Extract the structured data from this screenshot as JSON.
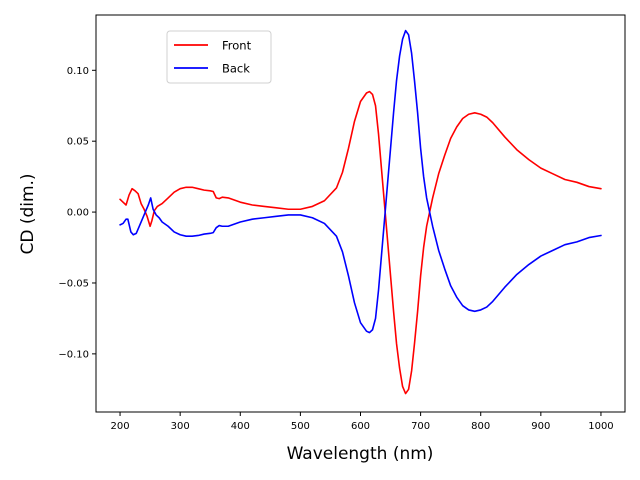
{
  "chart_data": {
    "type": "line",
    "title": "",
    "xlabel": "Wavelength (nm)",
    "ylabel": "CD (dim.)",
    "xlim": [
      160,
      1040
    ],
    "ylim": [
      -0.141,
      0.139
    ],
    "xticks": [
      200,
      300,
      400,
      500,
      600,
      700,
      800,
      900,
      1000
    ],
    "yticks": [
      -0.1,
      -0.05,
      0.0,
      0.05,
      0.1
    ],
    "ytick_labels": [
      "−0.10",
      "−0.05",
      "0.00",
      "0.05",
      "0.10"
    ],
    "legend_position": "upper-left",
    "grid": false,
    "series": [
      {
        "name": "Front",
        "color": "#ff0000",
        "points": [
          [
            200,
            0.009
          ],
          [
            205,
            0.007
          ],
          [
            210,
            0.005
          ],
          [
            215,
            0.012
          ],
          [
            220,
            0.0165
          ],
          [
            225,
            0.015
          ],
          [
            230,
            0.013
          ],
          [
            235,
            0.006
          ],
          [
            240,
            0.002
          ],
          [
            245,
            -0.003
          ],
          [
            250,
            -0.01
          ],
          [
            253,
            -0.006
          ],
          [
            257,
            0.001
          ],
          [
            262,
            0.004
          ],
          [
            270,
            0.006
          ],
          [
            280,
            0.01
          ],
          [
            290,
            0.014
          ],
          [
            300,
            0.0165
          ],
          [
            310,
            0.0175
          ],
          [
            320,
            0.0175
          ],
          [
            330,
            0.0165
          ],
          [
            340,
            0.0155
          ],
          [
            350,
            0.015
          ],
          [
            355,
            0.0145
          ],
          [
            360,
            0.01
          ],
          [
            365,
            0.0095
          ],
          [
            370,
            0.0105
          ],
          [
            380,
            0.01
          ],
          [
            400,
            0.007
          ],
          [
            420,
            0.005
          ],
          [
            440,
            0.004
          ],
          [
            460,
            0.003
          ],
          [
            480,
            0.002
          ],
          [
            500,
            0.002
          ],
          [
            520,
            0.004
          ],
          [
            540,
            0.008
          ],
          [
            560,
            0.017
          ],
          [
            570,
            0.028
          ],
          [
            580,
            0.045
          ],
          [
            590,
            0.064
          ],
          [
            600,
            0.078
          ],
          [
            610,
            0.084
          ],
          [
            615,
            0.085
          ],
          [
            620,
            0.083
          ],
          [
            625,
            0.075
          ],
          [
            630,
            0.055
          ],
          [
            635,
            0.03
          ],
          [
            640,
            0.005
          ],
          [
            645,
            -0.02
          ],
          [
            650,
            -0.045
          ],
          [
            655,
            -0.07
          ],
          [
            660,
            -0.093
          ],
          [
            665,
            -0.11
          ],
          [
            670,
            -0.123
          ],
          [
            675,
            -0.128
          ],
          [
            680,
            -0.125
          ],
          [
            685,
            -0.112
          ],
          [
            690,
            -0.092
          ],
          [
            695,
            -0.07
          ],
          [
            700,
            -0.045
          ],
          [
            705,
            -0.025
          ],
          [
            710,
            -0.01
          ],
          [
            720,
            0.01
          ],
          [
            730,
            0.027
          ],
          [
            740,
            0.04
          ],
          [
            750,
            0.052
          ],
          [
            760,
            0.06
          ],
          [
            770,
            0.066
          ],
          [
            780,
            0.069
          ],
          [
            790,
            0.07
          ],
          [
            800,
            0.069
          ],
          [
            810,
            0.067
          ],
          [
            820,
            0.063
          ],
          [
            840,
            0.053
          ],
          [
            860,
            0.044
          ],
          [
            880,
            0.037
          ],
          [
            900,
            0.031
          ],
          [
            920,
            0.027
          ],
          [
            940,
            0.023
          ],
          [
            960,
            0.021
          ],
          [
            980,
            0.018
          ],
          [
            1000,
            0.0165
          ]
        ]
      },
      {
        "name": "Back",
        "color": "#0000ff",
        "points": [
          [
            200,
            -0.009
          ],
          [
            205,
            -0.008
          ],
          [
            210,
            -0.005
          ],
          [
            213,
            -0.005
          ],
          [
            218,
            -0.014
          ],
          [
            222,
            -0.016
          ],
          [
            227,
            -0.015
          ],
          [
            232,
            -0.01
          ],
          [
            237,
            -0.005
          ],
          [
            242,
            0.0
          ],
          [
            247,
            0.005
          ],
          [
            251,
            0.01
          ],
          [
            255,
            0.002
          ],
          [
            260,
            -0.002
          ],
          [
            265,
            -0.004
          ],
          [
            270,
            -0.007
          ],
          [
            280,
            -0.01
          ],
          [
            290,
            -0.014
          ],
          [
            300,
            -0.016
          ],
          [
            310,
            -0.017
          ],
          [
            320,
            -0.017
          ],
          [
            330,
            -0.0165
          ],
          [
            340,
            -0.0155
          ],
          [
            350,
            -0.015
          ],
          [
            355,
            -0.0145
          ],
          [
            360,
            -0.011
          ],
          [
            365,
            -0.0095
          ],
          [
            370,
            -0.01
          ],
          [
            380,
            -0.01
          ],
          [
            400,
            -0.007
          ],
          [
            420,
            -0.005
          ],
          [
            440,
            -0.004
          ],
          [
            460,
            -0.003
          ],
          [
            480,
            -0.002
          ],
          [
            500,
            -0.002
          ],
          [
            520,
            -0.004
          ],
          [
            540,
            -0.008
          ],
          [
            560,
            -0.017
          ],
          [
            570,
            -0.028
          ],
          [
            580,
            -0.045
          ],
          [
            590,
            -0.064
          ],
          [
            600,
            -0.078
          ],
          [
            610,
            -0.084
          ],
          [
            615,
            -0.085
          ],
          [
            620,
            -0.083
          ],
          [
            625,
            -0.075
          ],
          [
            630,
            -0.055
          ],
          [
            635,
            -0.03
          ],
          [
            640,
            -0.005
          ],
          [
            645,
            0.02
          ],
          [
            650,
            0.045
          ],
          [
            655,
            0.07
          ],
          [
            660,
            0.093
          ],
          [
            665,
            0.11
          ],
          [
            670,
            0.122
          ],
          [
            675,
            0.128
          ],
          [
            680,
            0.125
          ],
          [
            685,
            0.112
          ],
          [
            690,
            0.092
          ],
          [
            695,
            0.07
          ],
          [
            700,
            0.045
          ],
          [
            705,
            0.025
          ],
          [
            710,
            0.01
          ],
          [
            720,
            -0.01
          ],
          [
            730,
            -0.027
          ],
          [
            740,
            -0.04
          ],
          [
            750,
            -0.052
          ],
          [
            760,
            -0.06
          ],
          [
            770,
            -0.066
          ],
          [
            780,
            -0.069
          ],
          [
            790,
            -0.07
          ],
          [
            800,
            -0.069
          ],
          [
            810,
            -0.067
          ],
          [
            820,
            -0.063
          ],
          [
            840,
            -0.053
          ],
          [
            860,
            -0.044
          ],
          [
            880,
            -0.037
          ],
          [
            900,
            -0.031
          ],
          [
            920,
            -0.027
          ],
          [
            940,
            -0.023
          ],
          [
            960,
            -0.021
          ],
          [
            980,
            -0.018
          ],
          [
            1000,
            -0.0165
          ]
        ]
      }
    ]
  }
}
